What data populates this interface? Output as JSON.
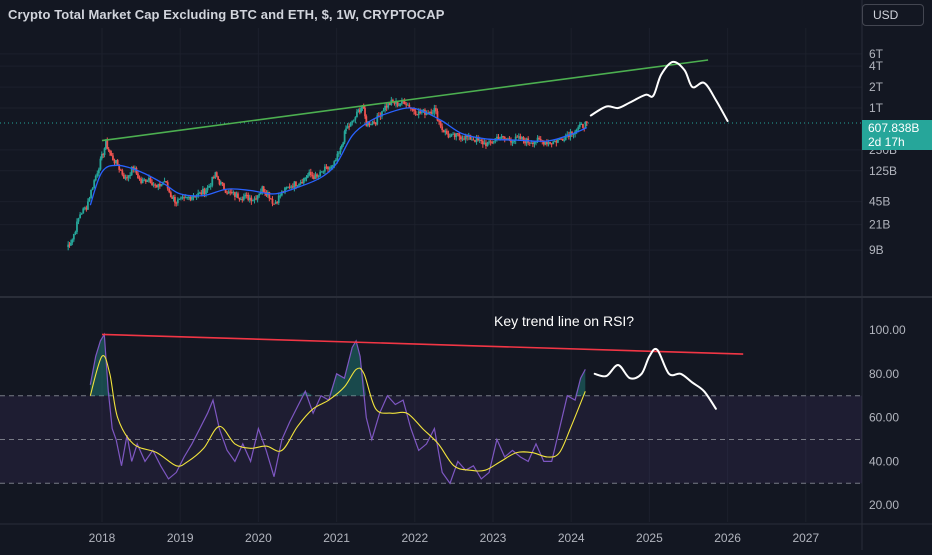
{
  "header": {
    "title": "Crypto Total Market Cap Excluding BTC and ETH, $, 1W, CRYPTOCAP",
    "currency": "USD"
  },
  "price_badge": {
    "value": "607.838B",
    "countdown": "2d 17h"
  },
  "colors": {
    "background": "#131722",
    "up_candle": "#26a69a",
    "down_candle": "#ef5350",
    "moving_average": "#2962ff",
    "upper_trend_line": "#4caf50",
    "rsi_line": "#7e57c2",
    "rsi_ma": "#f2e43c",
    "rsi_trend_line": "#f23645",
    "projection": "#ffffff"
  },
  "annotation": {
    "rsi_note": "Key trend line on RSI?"
  },
  "chart_data": [
    {
      "type": "candlestick",
      "name": "price_pane",
      "scale": "log",
      "y_tick_labels": [
        "6T",
        "4T",
        "2T",
        "1T",
        "250B",
        "125B",
        "45B",
        "21B",
        "9B"
      ],
      "y_tick_values": [
        6000,
        4000,
        2000,
        1000,
        250,
        125,
        45,
        21,
        9
      ],
      "x_tick_labels": [
        "2018",
        "2019",
        "2020",
        "2021",
        "2022",
        "2023",
        "2024",
        "2025",
        "2026",
        "2027"
      ],
      "x_range": [
        2017.2,
        2028.0
      ],
      "current_price": 607.838,
      "current_price_label": "607.838B",
      "series": [
        {
          "name": "close",
          "points": [
            [
              2017.55,
              10
            ],
            [
              2017.62,
              13
            ],
            [
              2017.72,
              30
            ],
            [
              2017.8,
              38
            ],
            [
              2017.9,
              90
            ],
            [
              2017.98,
              170
            ],
            [
              2018.05,
              310
            ],
            [
              2018.12,
              200
            ],
            [
              2018.2,
              150
            ],
            [
              2018.3,
              95
            ],
            [
              2018.4,
              140
            ],
            [
              2018.5,
              85
            ],
            [
              2018.6,
              100
            ],
            [
              2018.7,
              70
            ],
            [
              2018.8,
              90
            ],
            [
              2018.88,
              55
            ],
            [
              2018.95,
              45
            ],
            [
              2019.05,
              48
            ],
            [
              2019.15,
              55
            ],
            [
              2019.25,
              58
            ],
            [
              2019.35,
              70
            ],
            [
              2019.45,
              110
            ],
            [
              2019.52,
              80
            ],
            [
              2019.62,
              60
            ],
            [
              2019.72,
              55
            ],
            [
              2019.85,
              52
            ],
            [
              2019.95,
              50
            ],
            [
              2020.05,
              70
            ],
            [
              2020.12,
              60
            ],
            [
              2020.2,
              42
            ],
            [
              2020.3,
              60
            ],
            [
              2020.4,
              75
            ],
            [
              2020.5,
              85
            ],
            [
              2020.58,
              95
            ],
            [
              2020.65,
              110
            ],
            [
              2020.75,
              100
            ],
            [
              2020.85,
              130
            ],
            [
              2020.95,
              140
            ],
            [
              2021.05,
              250
            ],
            [
              2021.12,
              500
            ],
            [
              2021.2,
              620
            ],
            [
              2021.28,
              900
            ],
            [
              2021.33,
              1100
            ],
            [
              2021.38,
              600
            ],
            [
              2021.5,
              650
            ],
            [
              2021.6,
              1000
            ],
            [
              2021.7,
              1200
            ],
            [
              2021.8,
              1150
            ],
            [
              2021.87,
              1250
            ],
            [
              2021.95,
              1000
            ],
            [
              2022.05,
              850
            ],
            [
              2022.15,
              880
            ],
            [
              2022.25,
              950
            ],
            [
              2022.35,
              500
            ],
            [
              2022.45,
              380
            ],
            [
              2022.55,
              400
            ],
            [
              2022.65,
              380
            ],
            [
              2022.75,
              360
            ],
            [
              2022.85,
              320
            ],
            [
              2022.95,
              300
            ],
            [
              2023.05,
              380
            ],
            [
              2023.15,
              360
            ],
            [
              2023.25,
              350
            ],
            [
              2023.35,
              360
            ],
            [
              2023.45,
              330
            ],
            [
              2023.55,
              340
            ],
            [
              2023.65,
              330
            ],
            [
              2023.75,
              320
            ],
            [
              2023.85,
              350
            ],
            [
              2023.95,
              420
            ],
            [
              2024.05,
              480
            ],
            [
              2024.15,
              560
            ],
            [
              2024.2,
              607.838
            ]
          ]
        },
        {
          "name": "moving_average",
          "points": [
            [
              2017.85,
              40
            ],
            [
              2018.0,
              120
            ],
            [
              2018.2,
              150
            ],
            [
              2018.5,
              120
            ],
            [
              2018.8,
              80
            ],
            [
              2019.0,
              58
            ],
            [
              2019.3,
              55
            ],
            [
              2019.6,
              68
            ],
            [
              2019.9,
              65
            ],
            [
              2020.2,
              58
            ],
            [
              2020.5,
              72
            ],
            [
              2020.8,
              100
            ],
            [
              2021.0,
              160
            ],
            [
              2021.2,
              400
            ],
            [
              2021.4,
              620
            ],
            [
              2021.6,
              800
            ],
            [
              2021.9,
              1000
            ],
            [
              2022.1,
              900
            ],
            [
              2022.35,
              650
            ],
            [
              2022.6,
              430
            ],
            [
              2022.9,
              360
            ],
            [
              2023.3,
              345
            ],
            [
              2023.7,
              335
            ],
            [
              2024.0,
              420
            ],
            [
              2024.2,
              520
            ]
          ]
        },
        {
          "name": "upper_trend_line",
          "points": [
            [
              2018.0,
              340
            ],
            [
              2025.75,
              4900
            ]
          ]
        },
        {
          "name": "projection",
          "points": [
            [
              2024.25,
              780
            ],
            [
              2024.45,
              1050
            ],
            [
              2024.6,
              1000
            ],
            [
              2024.75,
              1200
            ],
            [
              2024.95,
              1550
            ],
            [
              2025.05,
              1500
            ],
            [
              2025.15,
              3000
            ],
            [
              2025.3,
              4600
            ],
            [
              2025.45,
              3500
            ],
            [
              2025.55,
              2000
            ],
            [
              2025.7,
              2300
            ],
            [
              2025.85,
              1300
            ],
            [
              2026.0,
              650
            ]
          ]
        }
      ]
    },
    {
      "type": "line",
      "name": "rsi_pane",
      "y_tick_labels": [
        "100.00",
        "80.00",
        "60.00",
        "40.00",
        "20.00"
      ],
      "y_tick_values": [
        100,
        80,
        60,
        40,
        20
      ],
      "ylim": [
        14,
        104
      ],
      "reference_levels": [
        70,
        50,
        30
      ],
      "x_range": [
        2017.2,
        2028.0
      ],
      "series": [
        {
          "name": "rsi",
          "points": [
            [
              2017.85,
              75
            ],
            [
              2017.92,
              88
            ],
            [
              2017.98,
              95
            ],
            [
              2018.03,
              98
            ],
            [
              2018.08,
              72
            ],
            [
              2018.13,
              55
            ],
            [
              2018.18,
              50
            ],
            [
              2018.25,
              38
            ],
            [
              2018.32,
              52
            ],
            [
              2018.38,
              40
            ],
            [
              2018.45,
              48
            ],
            [
              2018.55,
              40
            ],
            [
              2018.65,
              45
            ],
            [
              2018.75,
              38
            ],
            [
              2018.85,
              32
            ],
            [
              2018.95,
              35
            ],
            [
              2019.05,
              42
            ],
            [
              2019.15,
              48
            ],
            [
              2019.25,
              55
            ],
            [
              2019.35,
              62
            ],
            [
              2019.42,
              68
            ],
            [
              2019.5,
              55
            ],
            [
              2019.6,
              45
            ],
            [
              2019.7,
              40
            ],
            [
              2019.8,
              48
            ],
            [
              2019.9,
              40
            ],
            [
              2020.0,
              55
            ],
            [
              2020.1,
              45
            ],
            [
              2020.2,
              33
            ],
            [
              2020.3,
              50
            ],
            [
              2020.4,
              58
            ],
            [
              2020.5,
              65
            ],
            [
              2020.6,
              72
            ],
            [
              2020.7,
              62
            ],
            [
              2020.8,
              70
            ],
            [
              2020.9,
              68
            ],
            [
              2021.0,
              80
            ],
            [
              2021.1,
              78
            ],
            [
              2021.2,
              92
            ],
            [
              2021.25,
              95
            ],
            [
              2021.3,
              88
            ],
            [
              2021.38,
              60
            ],
            [
              2021.45,
              50
            ],
            [
              2021.55,
              62
            ],
            [
              2021.65,
              70
            ],
            [
              2021.75,
              66
            ],
            [
              2021.85,
              68
            ],
            [
              2021.95,
              55
            ],
            [
              2022.05,
              45
            ],
            [
              2022.15,
              48
            ],
            [
              2022.25,
              55
            ],
            [
              2022.35,
              35
            ],
            [
              2022.45,
              30
            ],
            [
              2022.55,
              40
            ],
            [
              2022.65,
              36
            ],
            [
              2022.75,
              38
            ],
            [
              2022.85,
              32
            ],
            [
              2022.95,
              35
            ],
            [
              2023.05,
              50
            ],
            [
              2023.15,
              42
            ],
            [
              2023.25,
              45
            ],
            [
              2023.35,
              42
            ],
            [
              2023.45,
              40
            ],
            [
              2023.55,
              48
            ],
            [
              2023.65,
              40
            ],
            [
              2023.75,
              40
            ],
            [
              2023.85,
              55
            ],
            [
              2023.95,
              70
            ],
            [
              2024.05,
              68
            ],
            [
              2024.12,
              78
            ],
            [
              2024.18,
              82
            ]
          ]
        },
        {
          "name": "rsi_ma",
          "points": [
            [
              2017.85,
              70
            ],
            [
              2018.0,
              88
            ],
            [
              2018.1,
              80
            ],
            [
              2018.2,
              60
            ],
            [
              2018.4,
              48
            ],
            [
              2018.7,
              44
            ],
            [
              2018.95,
              38
            ],
            [
              2019.1,
              40
            ],
            [
              2019.3,
              46
            ],
            [
              2019.5,
              56
            ],
            [
              2019.7,
              48
            ],
            [
              2019.9,
              46
            ],
            [
              2020.1,
              47
            ],
            [
              2020.3,
              45
            ],
            [
              2020.5,
              56
            ],
            [
              2020.7,
              64
            ],
            [
              2020.9,
              68
            ],
            [
              2021.1,
              74
            ],
            [
              2021.25,
              82
            ],
            [
              2021.35,
              80
            ],
            [
              2021.5,
              64
            ],
            [
              2021.7,
              62
            ],
            [
              2021.9,
              62
            ],
            [
              2022.1,
              55
            ],
            [
              2022.3,
              48
            ],
            [
              2022.5,
              38
            ],
            [
              2022.7,
              36
            ],
            [
              2022.9,
              36
            ],
            [
              2023.1,
              40
            ],
            [
              2023.3,
              44
            ],
            [
              2023.5,
              44
            ],
            [
              2023.7,
              42
            ],
            [
              2023.85,
              44
            ],
            [
              2024.0,
              56
            ],
            [
              2024.18,
              72
            ]
          ]
        },
        {
          "name": "rsi_trend_line",
          "points": [
            [
              2018.0,
              98
            ],
            [
              2026.2,
              89
            ]
          ]
        },
        {
          "name": "projection",
          "points": [
            [
              2024.3,
              80
            ],
            [
              2024.45,
              79
            ],
            [
              2024.6,
              84
            ],
            [
              2024.75,
              78
            ],
            [
              2024.9,
              80
            ],
            [
              2025.0,
              88
            ],
            [
              2025.1,
              91
            ],
            [
              2025.25,
              80
            ],
            [
              2025.4,
              80
            ],
            [
              2025.55,
              76
            ],
            [
              2025.7,
              72
            ],
            [
              2025.85,
              64
            ]
          ]
        }
      ]
    }
  ]
}
